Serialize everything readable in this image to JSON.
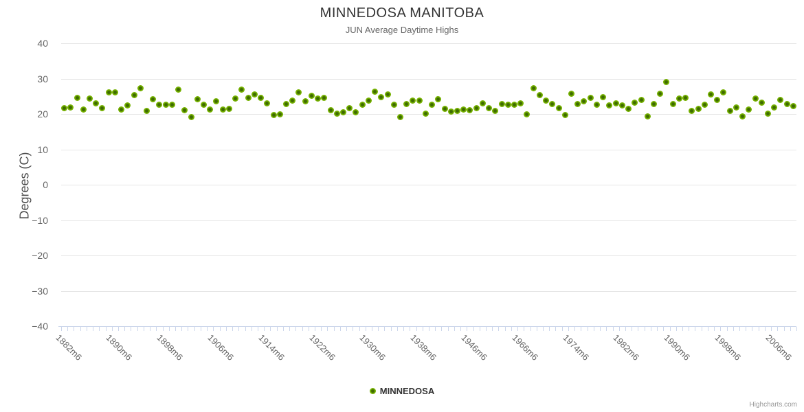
{
  "chart": {
    "title": "MINNEDOSA MANITOBA",
    "subtitle": "JUN Average Daytime Highs",
    "y_axis_title": "Degrees (C)",
    "series_name": "MINNEDOSA",
    "credits": "Highcharts.com",
    "colors": {
      "marker_outer": "#74b000",
      "marker_inner": "#3e6b00",
      "gridline": "#e6e6e6",
      "axis_line": "#ccd6eb",
      "title": "#333333",
      "subtitle": "#666666",
      "axis_label": "#666666",
      "legend_text": "#333333",
      "credits_text": "#999999"
    }
  },
  "chart_data": {
    "type": "scatter",
    "title": "MINNEDOSA MANITOBA",
    "subtitle": "JUN Average Daytime Highs",
    "xlabel": "",
    "ylabel": "Degrees (C)",
    "ylim": [
      -40,
      40
    ],
    "yticks": [
      40,
      30,
      20,
      10,
      0,
      -10,
      -20,
      -30,
      -40
    ],
    "grid": "horizontal",
    "legend_position": "bottom-center",
    "x_label_every": 8,
    "categories": [
      "1882m6",
      "1883m6",
      "1884m6",
      "1885m6",
      "1886m6",
      "1887m6",
      "1888m6",
      "1889m6",
      "1890m6",
      "1891m6",
      "1892m6",
      "1893m6",
      "1894m6",
      "1895m6",
      "1896m6",
      "1897m6",
      "1898m6",
      "1899m6",
      "1900m6",
      "1901m6",
      "1902m6",
      "1903m6",
      "1904m6",
      "1905m6",
      "1906m6",
      "1907m6",
      "1908m6",
      "1909m6",
      "1910m6",
      "1911m6",
      "1912m6",
      "1913m6",
      "1914m6",
      "1915m6",
      "1916m6",
      "1917m6",
      "1918m6",
      "1919m6",
      "1920m6",
      "1921m6",
      "1922m6",
      "1923m6",
      "1924m6",
      "1925m6",
      "1926m6",
      "1927m6",
      "1928m6",
      "1929m6",
      "1930m6",
      "1931m6",
      "1932m6",
      "1933m6",
      "1934m6",
      "1935m6",
      "1936m6",
      "1937m6",
      "1938m6",
      "1939m6",
      "1940m6",
      "1941m6",
      "1942m6",
      "1943m6",
      "1944m6",
      "1945m6",
      "1946m6",
      "1959m6",
      "1960m6",
      "1961m6",
      "1962m6",
      "1963m6",
      "1964m6",
      "1965m6",
      "1966m6",
      "1967m6",
      "1968m6",
      "1969m6",
      "1970m6",
      "1971m6",
      "1972m6",
      "1973m6",
      "1974m6",
      "1975m6",
      "1976m6",
      "1977m6",
      "1978m6",
      "1979m6",
      "1980m6",
      "1981m6",
      "1982m6",
      "1983m6",
      "1984m6",
      "1985m6",
      "1986m6",
      "1987m6",
      "1988m6",
      "1989m6",
      "1990m6",
      "1991m6",
      "1992m6",
      "1993m6",
      "1994m6",
      "1995m6",
      "1996m6",
      "1997m6",
      "1998m6",
      "1999m6",
      "2000m6",
      "2001m6",
      "2002m6",
      "2003m6",
      "2004m6",
      "2005m6",
      "2006m6",
      "2007m6",
      "2008m6",
      "2009m6"
    ],
    "series": [
      {
        "name": "MINNEDOSA",
        "values": [
          21.7,
          21.8,
          24.5,
          21.2,
          24.4,
          23.1,
          21.7,
          26.2,
          26.1,
          21.3,
          22.4,
          25.4,
          27.2,
          20.8,
          24.1,
          22.7,
          22.7,
          22.7,
          26.9,
          21.0,
          19.2,
          24.1,
          22.7,
          21.3,
          23.5,
          21.3,
          21.4,
          24.4,
          26.8,
          24.5,
          25.5,
          24.5,
          23.1,
          19.8,
          19.9,
          22.8,
          23.8,
          26.2,
          23.5,
          25.1,
          24.4,
          24.6,
          21.0,
          20.1,
          20.5,
          21.7,
          20.5,
          22.6,
          23.7,
          26.3,
          24.8,
          25.6,
          22.6,
          19.2,
          22.8,
          23.7,
          23.8,
          20.1,
          22.6,
          24.2,
          21.5,
          20.7,
          20.9,
          21.2,
          21.0,
          21.7,
          23.0,
          21.7,
          20.8,
          22.9,
          22.6,
          22.6,
          23.0,
          20.0,
          27.3,
          25.4,
          23.7,
          22.9,
          21.7,
          19.7,
          25.7,
          22.8,
          23.5,
          24.5,
          22.7,
          24.8,
          22.5,
          23.1,
          22.5,
          21.5,
          23.2,
          23.9,
          19.4,
          22.9,
          25.7,
          29.0,
          22.8,
          24.3,
          24.5,
          20.8,
          21.5,
          22.6,
          25.5,
          23.9,
          26.1,
          20.8,
          21.9,
          19.4,
          21.2,
          24.3,
          23.2,
          20.1,
          21.9,
          23.9,
          22.8,
          22.3
        ]
      }
    ]
  }
}
